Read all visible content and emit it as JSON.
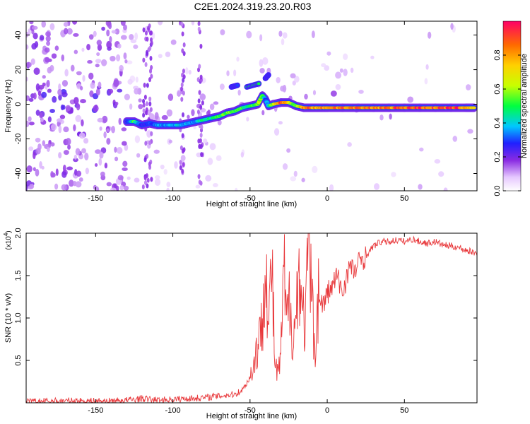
{
  "title": "C2E1.2024.319.23.20.R03",
  "chart_data": [
    {
      "type": "heatmap",
      "xlabel": "Height of straight line (km)",
      "ylabel": "Frequency (Hz)",
      "xlim": [
        -195,
        97
      ],
      "ylim": [
        -50,
        48
      ],
      "xticks": [
        -150,
        -100,
        -50,
        0,
        50
      ],
      "yticks": [
        -40,
        -20,
        0,
        20,
        40
      ],
      "colorbar": {
        "label": "Normalized spectral amplitude",
        "range": [
          0,
          1
        ],
        "ticks": [
          "0.0",
          "0.2",
          "0.4",
          "0.6",
          "0.8"
        ]
      },
      "ridge": {
        "x": [
          -130,
          -125,
          -120,
          -115,
          -110,
          -105,
          -100,
          -95,
          -90,
          -85,
          -80,
          -75,
          -70,
          -65,
          -60,
          -55,
          -50,
          -45,
          -42,
          -40,
          -38,
          -35,
          -30,
          -25,
          -20,
          -15,
          -10,
          -5,
          0,
          10,
          20,
          30,
          40,
          50,
          60,
          70,
          80,
          90,
          95
        ],
        "y": [
          -10,
          -10,
          -12,
          -11,
          -12,
          -12,
          -12,
          -12,
          -11,
          -10,
          -9,
          -8,
          -7,
          -5,
          -4,
          -2,
          -1,
          0,
          5,
          3,
          -1,
          0,
          1,
          1,
          -1,
          -2,
          -2,
          -2,
          -2,
          -2,
          -2,
          -2,
          -2,
          -2,
          -2,
          -2,
          -2,
          -2,
          -2
        ],
        "amplitude": [
          0.2,
          0.5,
          0.25,
          0.3,
          0.35,
          0.35,
          0.35,
          0.4,
          0.35,
          0.35,
          0.45,
          0.45,
          0.5,
          0.55,
          0.55,
          0.5,
          0.45,
          0.6,
          0.55,
          0.3,
          0.4,
          0.6,
          0.9,
          0.7,
          0.5,
          0.85,
          0.85,
          0.8,
          0.85,
          0.85,
          0.8,
          0.85,
          0.85,
          0.9,
          0.9,
          0.85,
          0.9,
          0.85,
          0.7
        ]
      },
      "features": [
        {
          "x": [
            -52,
            -44
          ],
          "y": [
            10,
            12
          ],
          "amplitude": 0.5
        },
        {
          "x": [
            -62,
            -58
          ],
          "y": [
            10,
            11
          ],
          "amplitude": 0.3
        },
        {
          "x": [
            -40,
            -38
          ],
          "y": [
            15,
            17
          ],
          "amplitude": 0.25
        }
      ]
    },
    {
      "type": "line",
      "xlabel": "Height of straight line (km)",
      "ylabel": "SNR (10 * v/v)",
      "ylabel_scale": "(x10",
      "ylabel_exp": "4",
      "ylabel_close": ")",
      "xlim": [
        -195,
        97
      ],
      "ylim": [
        0,
        2.0
      ],
      "xticks": [
        -150,
        -100,
        -50,
        0,
        50
      ],
      "yticks": [
        "0.5",
        "1.0",
        "1.5",
        "2.0"
      ],
      "color": "#e8383b",
      "series": [
        {
          "x": [
            -195,
            -180,
            -160,
            -140,
            -130,
            -120,
            -110,
            -100,
            -90,
            -80,
            -70,
            -60,
            -55,
            -50,
            -47,
            -45,
            -42,
            -40,
            -38,
            -36,
            -34,
            -32,
            -30,
            -28,
            -26,
            -24,
            -22,
            -20,
            -18,
            -16,
            -14,
            -12,
            -10,
            -8,
            -6,
            -4,
            -2,
            0,
            3,
            6,
            10,
            14,
            18,
            22,
            26,
            30,
            35,
            40,
            45,
            50,
            55,
            60,
            65,
            70,
            75,
            80,
            85,
            90,
            97
          ],
          "y": [
            0.01,
            0.02,
            0.02,
            0.02,
            0.03,
            0.05,
            0.03,
            0.04,
            0.05,
            0.06,
            0.08,
            0.1,
            0.15,
            0.3,
            0.5,
            0.7,
            0.9,
            1.95,
            0.8,
            1.7,
            0.5,
            0.3,
            0.6,
            1.5,
            0.9,
            1.3,
            0.7,
            1.1,
            1.65,
            1.0,
            1.0,
            1.85,
            1.2,
            0.6,
            1.25,
            1.2,
            1.15,
            1.3,
            1.35,
            1.5,
            1.3,
            1.6,
            1.55,
            1.7,
            1.75,
            1.85,
            1.9,
            1.9,
            1.92,
            1.9,
            1.93,
            1.9,
            1.88,
            1.9,
            1.86,
            1.85,
            1.83,
            1.8,
            1.76
          ]
        }
      ]
    }
  ]
}
